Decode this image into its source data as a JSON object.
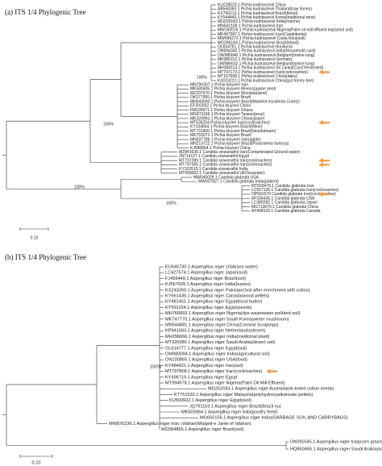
{
  "panels": [
    {
      "title": "(a) ITS 1/4 Phylogenic Tree",
      "taxa": [
        "KU218523.1 Pichia kudriavzevii China",
        "AB568360.1 Pichia kudriavzevii Thailand(raw honey)",
        "KX766213.1 Pichia kudriavzevii Brazil(blood)",
        "KY044440.1 Pichia kudriavzevii Korea(traditional wine)",
        "MG029183.1 Pichia kudriavzevii India(marine)",
        "MN542168.1 Pichia kudriavzevii Iran",
        "MW182016.1 Pichia kudriavzevii Nigeria(Palm oil mill effluent impacted soil)",
        "MF497387.1 Pichia kudriavzevii Iran(Candidemia)",
        "MW995272.1 Pichia kudriavzevii Costa Rica(soil)",
        "MG396184.1 Pichia kudriavzevii Brazil(blood)",
        "OL604781.1 Pichia kudriavzevii Honduras",
        "ON694343.1 Pichia kudriavzevii India(Household curd)",
        "OW985640.1 Pichia kudriavzevii Belgium(bovine lung)",
        "MK085312.1 Pichia kudriavzevii Germany",
        "OW986632.1 Pichia kudriavzevii Belgium(bovine lung)",
        "MH368114.1 Pichia kudriavzevii Sri Lanka(Curd fermented)",
        "MT797173.1 Pichia kudriavzevii Iran(cockroaches)",
        "MT157508.1 Pichia kudriavzevii China(dairy)",
        "KX023221.1 Pichia kudriavzevii China(gut honey bee)",
        "MN796307.1 Pichia kluyveri Iran",
        "MK580405.1 Pichia kluyveri Mexico(jujube peel)",
        "MZ207970.1 Pichia kluyveri Slovakia(wine)",
        "OK577955.1 Pichia kluyveri Brazil",
        "MH043590.1 Pichia kluyveri Brazil(Manihot esculenta Crantz)",
        "EF202932.1 Pichia kluyveri China",
        "FM199971.1 Pichia kluyveri Ghana",
        "MG871196.1 Pichia kluyveri Taiwan(pear)",
        "MK329993.1 Pichia kluyveri China(grape)",
        "MT536204 Pichia kluyveri Iran(cockroaches)",
        "KY104564.1 Pichia kluyveri Brazil(Wine)",
        "MT731400.1 Pichia kluyveri Brazil(bloodstream)",
        "MK753073.1 Pichia kluyveri Brazil",
        "MN337786.1 Pichia kluyveri Iran(apple)",
        "MN213722.1 Pichia kluyveri Brazil(Paracoenia fumosa)",
        "KJ586864.1 Pichia kluyveri China",
        "MZ841639.1 Candida viswanathii Iran(Contaminated Ground water)",
        "JN714127.1 Candida viswanathii Egypt",
        "MT797289.1 Candida viswanathii Iran(cockroaches)",
        "MT797365.1 Candida viswanathii Iran(cockroaches)",
        "KY102515.1 Candida viswanathii India",
        "MT659652.1 Candida viswanathii UK(Seawater)",
        "MW040029.1 Candida glabrata USA",
        "MW007827.1 Candida glabrata India(patient)",
        "MT603476.1 Candida glabrata Iran",
        "LC567126.1 Candida glabrata Iran(cockroaches)",
        "OP562670 Candida glabrata Iran(cockroaches)",
        "AF336436.1 Candida glabrata USA",
        "LC389282.1 Candida glabrata Japan",
        "MG713670.1 Candida glabrata China",
        "AY468165.1 Candida glabrata Canada"
      ],
      "bootstrap": [
        "100%",
        "100%",
        "100%",
        "100%"
      ],
      "scale_label": "0.10"
    },
    {
      "title": "(b) ITS 1/4 Phylogenic Tree",
      "taxa": [
        "EU545730.1 Aspergillus niger USA(sea water)",
        "LC427574.1 Aspergillus niger Japan(soil)",
        "FJ459449.1 Aspergillus niger Brazil(soil)",
        "KJ567926.1 Aspergillus niger India(leaves)",
        "KX243269.1 Aspergillus niger Pakistan(Soil after enrichment with cotton)",
        "KY661435.1 Aspergillus niger Canada(wood pellets)",
        "KY481451.1 Aspergillus niger Egypt(local butter)",
        "KY591154.1 Aspergillus niger Egypt(seeds)",
        "MH766893.1 Aspergillus niger Nigeria(dye wastewater polluted soil)",
        "MK747770.1 Aspergillus niger South Korea(winter mushroom)",
        "MN544881.1 Aspergillus niger China(Corneal Scrapings)",
        "KP941093.1 Aspergillus niger Netherlands(desert)",
        "MH296666.1 Aspergillus niger India(medicinal plant)",
        "MT320089.1 Aspergillus niger Saudi Arabia(desert soil)",
        "OL614777.1 Aspergillus niger Egypt(soil)",
        "OM980094.1 Aspergillus niger India(agricultural soil)",
        "ON100855.1 Aspergillus niger USA(food)",
        "KY484921.1 Aspergillus niger Iran(soil)",
        "MT797808.1 Aspergillus niger Iran(cockroaches)",
        "KY496719.1 Aspergillus niger Egypt",
        "MT994678.1 Aspergillus niger Nigeria(Palm Oil Mill Effluent)",
        "MG252043.1 Aspergillus niger Australia(de-linted cotton seeds)",
        "KT751532.1 Aspergillus niger Malaysia(polyhydroxyalkanoate pellets)",
        "KU593602.1 Aspergillus niger Egypt(soil)",
        "JQ791163.1 Aspergillus niger Brazil(Brazil nu)",
        "MK503964.1 Aspergillus niger Italy(poultry feed)",
        "MG650156.1 Aspergillus niger India(GARBAGE SOIL AND CARRYBAGS)",
        "MW876236.1 Aspergillus niger Iran: Isfahan(Masjed-e Jame of Isfahan)",
        "MG584865.1 Aspergillus niger Brazil(soil)",
        "OK091645.1 Aspergillus niger Iraq(corn grains)",
        "HQ850465.1 Aspergillus niger Saudi Arabia(soil)"
      ],
      "bootstrap": [
        "100%"
      ],
      "scale_label": "0.10"
    }
  ]
}
